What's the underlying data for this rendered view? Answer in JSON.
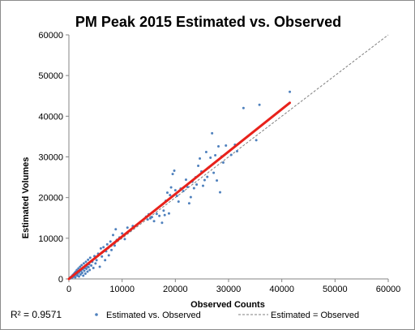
{
  "chart_data": {
    "type": "scatter",
    "title": "PM Peak 2015 Estimated vs. Observed",
    "xlabel": "Observed Counts",
    "ylabel": "Estimated Volumes",
    "xlim": [
      0,
      60000
    ],
    "ylim": [
      0,
      60000
    ],
    "x_ticks": [
      0,
      10000,
      20000,
      30000,
      40000,
      50000,
      60000
    ],
    "y_ticks": [
      0,
      10000,
      20000,
      30000,
      40000,
      50000,
      60000
    ],
    "grid": false,
    "legend_position": "bottom",
    "r_squared_label": "R² = 0.9571",
    "series": [
      {
        "name": "Estimated vs. Observed",
        "kind": "scatter",
        "color": "#4f81bd",
        "points": [
          [
            200,
            100
          ],
          [
            300,
            400
          ],
          [
            400,
            200
          ],
          [
            500,
            600
          ],
          [
            600,
            300
          ],
          [
            700,
            900
          ],
          [
            800,
            500
          ],
          [
            900,
            1200
          ],
          [
            1000,
            700
          ],
          [
            1100,
            1500
          ],
          [
            1200,
            400
          ],
          [
            1300,
            1800
          ],
          [
            1400,
            1000
          ],
          [
            1500,
            2200
          ],
          [
            1600,
            800
          ],
          [
            1700,
            1300
          ],
          [
            1800,
            2600
          ],
          [
            1900,
            600
          ],
          [
            2000,
            1700
          ],
          [
            2100,
            3000
          ],
          [
            2200,
            1100
          ],
          [
            2300,
            2000
          ],
          [
            2400,
            3400
          ],
          [
            2500,
            1500
          ],
          [
            2600,
            2400
          ],
          [
            2700,
            800
          ],
          [
            2800,
            3800
          ],
          [
            2900,
            2000
          ],
          [
            3000,
            2700
          ],
          [
            3100,
            1300
          ],
          [
            3200,
            4200
          ],
          [
            3300,
            2500
          ],
          [
            3400,
            3100
          ],
          [
            3500,
            1800
          ],
          [
            3600,
            4700
          ],
          [
            3700,
            2900
          ],
          [
            3800,
            3600
          ],
          [
            3900,
            2200
          ],
          [
            4000,
            5200
          ],
          [
            4200,
            3300
          ],
          [
            4400,
            4200
          ],
          [
            4600,
            2700
          ],
          [
            4800,
            5600
          ],
          [
            5000,
            3800
          ],
          [
            5200,
            4600
          ],
          [
            5500,
            6200
          ],
          [
            5800,
            3000
          ],
          [
            6000,
            7500
          ],
          [
            6200,
            5500
          ],
          [
            6500,
            7800
          ],
          [
            6800,
            4600
          ],
          [
            7000,
            6800
          ],
          [
            7200,
            8500
          ],
          [
            7500,
            5800
          ],
          [
            7800,
            9200
          ],
          [
            8000,
            7100
          ],
          [
            8300,
            10800
          ],
          [
            8600,
            8200
          ],
          [
            8800,
            12200
          ],
          [
            9000,
            9600
          ],
          [
            9500,
            10200
          ],
          [
            10000,
            11200
          ],
          [
            10500,
            9800
          ],
          [
            11000,
            12600
          ],
          [
            11500,
            11900
          ],
          [
            12000,
            13000
          ],
          [
            14500,
            15300
          ],
          [
            14800,
            14600
          ],
          [
            15000,
            15900
          ],
          [
            15300,
            14900
          ],
          [
            15600,
            15200
          ],
          [
            16000,
            14200
          ],
          [
            16500,
            16000
          ],
          [
            17000,
            15500
          ],
          [
            17500,
            13800
          ],
          [
            17800,
            16800
          ],
          [
            18000,
            15700
          ],
          [
            18200,
            19200
          ],
          [
            18500,
            21200
          ],
          [
            18800,
            16100
          ],
          [
            19000,
            20600
          ],
          [
            19200,
            22500
          ],
          [
            19500,
            25800
          ],
          [
            19800,
            26600
          ],
          [
            20000,
            21800
          ],
          [
            20300,
            20400
          ],
          [
            20600,
            19000
          ],
          [
            21000,
            22200
          ],
          [
            21500,
            21600
          ],
          [
            22000,
            24400
          ],
          [
            22300,
            22600
          ],
          [
            22600,
            18600
          ],
          [
            22900,
            20100
          ],
          [
            23200,
            23900
          ],
          [
            23500,
            22300
          ],
          [
            23800,
            25000
          ],
          [
            24000,
            23200
          ],
          [
            24300,
            27800
          ],
          [
            24600,
            29600
          ],
          [
            24900,
            26400
          ],
          [
            25200,
            22900
          ],
          [
            25500,
            24300
          ],
          [
            25800,
            31200
          ],
          [
            26000,
            25100
          ],
          [
            26300,
            27400
          ],
          [
            26600,
            29800
          ],
          [
            26900,
            35800
          ],
          [
            27200,
            26100
          ],
          [
            27500,
            30400
          ],
          [
            27800,
            24200
          ],
          [
            28100,
            32600
          ],
          [
            28400,
            21300
          ],
          [
            28700,
            30100
          ],
          [
            29000,
            28600
          ],
          [
            29500,
            32800
          ],
          [
            30500,
            30500
          ],
          [
            31200,
            33000
          ],
          [
            31600,
            31400
          ],
          [
            32800,
            42000
          ],
          [
            35200,
            34100
          ],
          [
            35800,
            42800
          ],
          [
            41500,
            46000
          ]
        ]
      },
      {
        "name": "",
        "kind": "trendline",
        "color": "#e8221b",
        "points": [
          [
            0,
            0
          ],
          [
            41500,
            43300
          ]
        ]
      },
      {
        "name": "Estimated = Observed",
        "kind": "reference-line",
        "color": "#7f7f7f",
        "points": [
          [
            0,
            0
          ],
          [
            60000,
            60000
          ]
        ]
      }
    ]
  }
}
